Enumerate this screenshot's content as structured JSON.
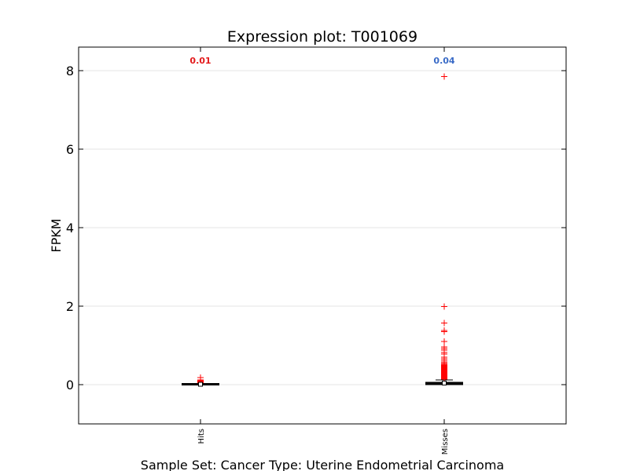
{
  "chart_data": {
    "type": "box",
    "title": "Expression plot: T001069",
    "xlabel": "Sample Set: Cancer Type: Uterine Endometrial Carcinoma",
    "ylabel": "FPKM",
    "ylim": [
      -1,
      8.6
    ],
    "yticks": [
      0,
      2,
      4,
      6,
      8
    ],
    "grid": "horizontal",
    "categories": [
      "Hits",
      "Misses"
    ],
    "annotations": [
      {
        "category": "Hits",
        "text": "0.01",
        "color": "#e31a1c"
      },
      {
        "category": "Misses",
        "text": "0.04",
        "color": "#3a6bc7"
      }
    ],
    "boxes": [
      {
        "name": "Hits",
        "whisker_low": 0.0,
        "q1": 0.0,
        "median": 0.01,
        "q3": 0.02,
        "whisker_high": 0.03,
        "mean": 0.01,
        "outliers": [
          0.05,
          0.06,
          0.07,
          0.08,
          0.09,
          0.1,
          0.11,
          0.12,
          0.18
        ]
      },
      {
        "name": "Misses",
        "whisker_low": 0.0,
        "q1": 0.01,
        "median": 0.03,
        "q3": 0.05,
        "whisker_high": 0.12,
        "mean": 0.04,
        "outliers": [
          0.14,
          0.16,
          0.18,
          0.2,
          0.22,
          0.24,
          0.26,
          0.28,
          0.3,
          0.32,
          0.34,
          0.36,
          0.38,
          0.4,
          0.42,
          0.44,
          0.46,
          0.48,
          0.5,
          0.52,
          0.55,
          0.58,
          0.62,
          0.66,
          0.7,
          0.78,
          0.82,
          0.88,
          0.92,
          0.96,
          1.1,
          1.35,
          1.38,
          1.57,
          1.99,
          7.85
        ]
      }
    ],
    "colors": {
      "outlier": "#ff0000",
      "box": "#000000",
      "grid": "#e6e6e6"
    }
  }
}
